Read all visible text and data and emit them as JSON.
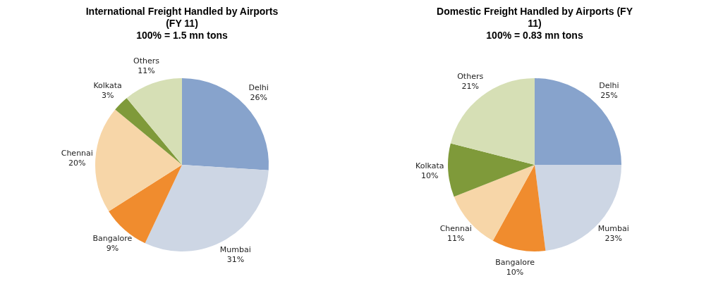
{
  "chart_data": [
    {
      "type": "pie",
      "title": "International Freight Handled by Airports (FY 11)",
      "subtitle": "100% = 1.5 mn tons",
      "categories": [
        "Delhi",
        "Mumbai",
        "Bangalore",
        "Chennai",
        "Kolkata",
        "Others"
      ],
      "values": [
        26,
        31,
        9,
        20,
        3,
        11
      ],
      "value_labels": [
        "26%",
        "31%",
        "9%",
        "20%",
        "3%",
        "11%"
      ],
      "colors": [
        "#87a3cc",
        "#cdd6e4",
        "#f08c2e",
        "#f7d6a8",
        "#7f9a3a",
        "#d6dfb5"
      ],
      "legend": false
    },
    {
      "type": "pie",
      "title": "Domestic Freight Handled by Airports (FY 11)",
      "subtitle": "100% = 0.83 mn tons",
      "categories": [
        "Delhi",
        "Mumbai",
        "Bangalore",
        "Chennai",
        "Kolkata",
        "Others"
      ],
      "values": [
        25,
        23,
        10,
        11,
        10,
        21
      ],
      "value_labels": [
        "25%",
        "23%",
        "10%",
        "11%",
        "10%",
        "21%"
      ],
      "colors": [
        "#87a3cc",
        "#cdd6e4",
        "#f08c2e",
        "#f7d6a8",
        "#7f9a3a",
        "#d6dfb5"
      ],
      "legend": false
    }
  ]
}
